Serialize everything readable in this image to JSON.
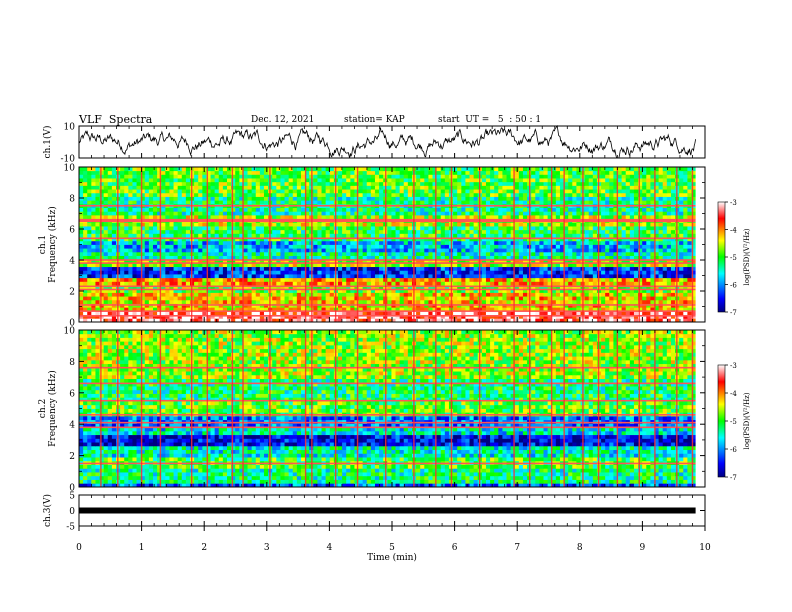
{
  "header": {
    "title": "VLF  Spectra",
    "date": "Dec. 12, 2021",
    "station": "station= KAP",
    "start_ut": "start  UT =   5  : 50 : 1"
  },
  "chart_data": [
    {
      "type": "line",
      "panel": "ch1-waveform",
      "ylabel": "ch.1(V)",
      "ylim": [
        -10,
        10
      ],
      "yticks": [
        "10",
        "-10"
      ],
      "xlim": [
        0,
        10
      ],
      "data_end_min": 9.85,
      "color": "#000000"
    },
    {
      "type": "heatmap",
      "panel": "ch1-spectrogram",
      "ylabel": "ch.1\nFrequency (kHz)",
      "ylabel_lines": [
        "ch.1",
        "Frequency (kHz)"
      ],
      "ylim": [
        0,
        10
      ],
      "yticks": [
        "0",
        "2",
        "4",
        "6",
        "8",
        "10"
      ],
      "xlim": [
        0,
        10
      ],
      "data_end_min": 9.85,
      "colorbar": {
        "label": "log(PSD)(V²/Hz)",
        "range": [
          -7,
          -3
        ],
        "ticks": [
          "-3",
          "-4",
          "-5",
          "-6",
          "-7"
        ]
      },
      "frequency_bands_kHz": [
        {
          "from": 0.0,
          "to": 0.8,
          "level": -3.3
        },
        {
          "from": 0.8,
          "to": 1.8,
          "level": -4.3
        },
        {
          "from": 1.8,
          "to": 2.4,
          "level": -4.8
        },
        {
          "from": 2.4,
          "to": 2.8,
          "level": -4.2
        },
        {
          "from": 2.8,
          "to": 3.6,
          "level": -6.4
        },
        {
          "from": 3.6,
          "to": 4.1,
          "level": -4.6
        },
        {
          "from": 4.1,
          "to": 4.6,
          "level": -5.4
        },
        {
          "from": 4.6,
          "to": 5.2,
          "level": -5.8
        },
        {
          "from": 5.2,
          "to": 6.2,
          "level": -5.1
        },
        {
          "from": 6.2,
          "to": 6.8,
          "level": -4.6
        },
        {
          "from": 6.8,
          "to": 8.0,
          "level": -5.3
        },
        {
          "from": 8.0,
          "to": 10.0,
          "level": -4.9
        }
      ],
      "horizontal_lines_kHz": [
        0.4,
        0.7,
        1.1,
        2.1,
        2.3,
        3.8,
        4.0,
        6.5,
        6.6,
        5.4,
        7.5
      ],
      "sferic_times_min": [
        0.35,
        0.62,
        1.0,
        1.3,
        1.8,
        2.05,
        2.45,
        2.62,
        3.05,
        3.62,
        3.72,
        4.1,
        4.45,
        4.9,
        5.35,
        5.7,
        5.95,
        6.4,
        6.95,
        7.2,
        7.55,
        7.75,
        8.05,
        8.3,
        8.6,
        8.95,
        9.2,
        9.55,
        9.8
      ]
    },
    {
      "type": "heatmap",
      "panel": "ch2-spectrogram",
      "ylabel": "ch.2\nFrequency (kHz)",
      "ylabel_lines": [
        "ch.2",
        "Frequency (kHz)"
      ],
      "ylim": [
        0,
        10
      ],
      "yticks": [
        "0",
        "2",
        "4",
        "6",
        "8",
        "10"
      ],
      "xlim": [
        0,
        10
      ],
      "data_end_min": 9.85,
      "colorbar": {
        "label": "log(PSD)(V²/Hz)",
        "range": [
          -7,
          -3
        ],
        "ticks": [
          "-3",
          "-4",
          "-5",
          "-6",
          "-7"
        ]
      },
      "frequency_bands_kHz": [
        {
          "from": 0.0,
          "to": 0.3,
          "level": -6.2
        },
        {
          "from": 0.3,
          "to": 1.2,
          "level": -5.3
        },
        {
          "from": 1.2,
          "to": 2.0,
          "level": -5.0
        },
        {
          "from": 2.0,
          "to": 2.6,
          "level": -5.5
        },
        {
          "from": 2.6,
          "to": 3.4,
          "level": -6.6
        },
        {
          "from": 3.4,
          "to": 3.9,
          "level": -5.6
        },
        {
          "from": 3.9,
          "to": 4.6,
          "level": -6.1
        },
        {
          "from": 4.6,
          "to": 5.4,
          "level": -4.9
        },
        {
          "from": 5.4,
          "to": 7.0,
          "level": -5.2
        },
        {
          "from": 7.0,
          "to": 10.0,
          "level": -4.7
        }
      ],
      "horizontal_lines_kHz": [
        1.5,
        3.8,
        4.1,
        4.6,
        5.5,
        6.6,
        7.6
      ],
      "sferic_times_min": [
        0.35,
        0.62,
        1.0,
        1.3,
        1.8,
        2.05,
        2.45,
        2.62,
        3.05,
        3.62,
        3.72,
        4.1,
        4.45,
        4.9,
        5.35,
        5.7,
        5.95,
        6.4,
        6.95,
        7.2,
        7.55,
        7.75,
        8.05,
        8.3,
        8.6,
        8.95,
        9.2,
        9.55,
        9.8
      ]
    },
    {
      "type": "line",
      "panel": "ch3-waveform",
      "ylabel": "ch.3(V)",
      "ylim": [
        -5,
        5
      ],
      "yticks": [
        "5",
        "0",
        "-5"
      ],
      "xlim": [
        0,
        10
      ],
      "data_end_min": 9.85,
      "baseline_V": 0,
      "color": "#000000"
    }
  ],
  "xaxis": {
    "label": "Time  (min)",
    "ticks": [
      "0",
      "1",
      "2",
      "3",
      "4",
      "5",
      "6",
      "7",
      "8",
      "9",
      "10"
    ]
  }
}
